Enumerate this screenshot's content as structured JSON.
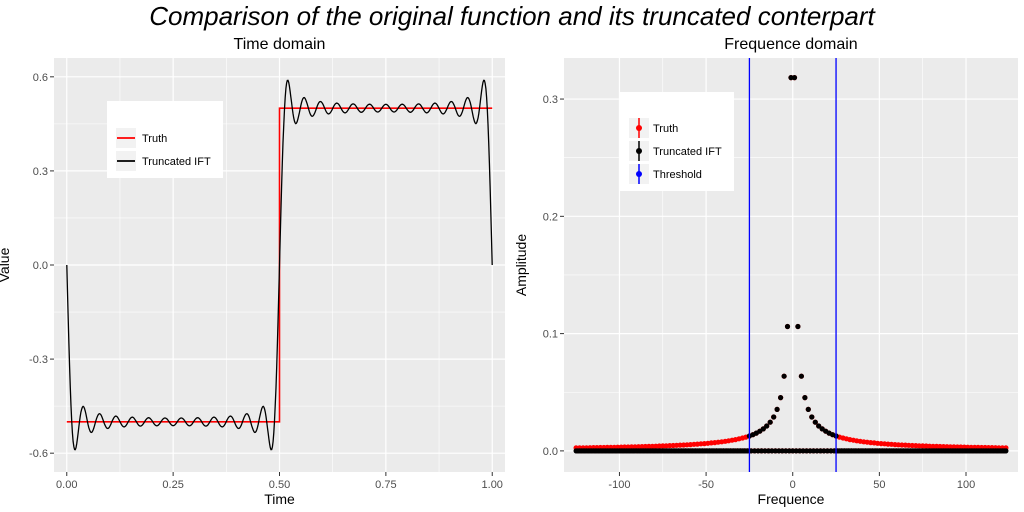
{
  "page": {
    "title": "Comparison of the original function and its truncated conterpart"
  },
  "chart_data": [
    {
      "type": "line",
      "title": "Time domain",
      "xlabel": "Time",
      "ylabel": "Value",
      "xlim": [
        -0.03,
        1.03
      ],
      "ylim": [
        -0.66,
        0.66
      ],
      "x_ticks": [
        0.0,
        0.25,
        0.5,
        0.75,
        1.0
      ],
      "x_tick_labels": [
        "0.00",
        "0.25",
        "0.50",
        "0.75",
        "1.00"
      ],
      "y_ticks": [
        -0.6,
        -0.3,
        0.0,
        0.3,
        0.6
      ],
      "y_tick_labels": [
        "-0.6",
        "-0.3",
        "0.0",
        "0.3",
        "0.6"
      ],
      "grid": true,
      "legend": {
        "position": "top-left",
        "entries": [
          "Truth",
          "Truncated IFT"
        ]
      },
      "series": [
        {
          "name": "Truth",
          "color": "#ff0000",
          "x": [
            0.0,
            0.5,
            0.5,
            1.0
          ],
          "y": [
            -0.5,
            -0.5,
            0.5,
            0.5
          ]
        },
        {
          "name": "Truncated IFT",
          "color": "#000000",
          "function": "truncated Fourier series of square wave, harmonics |k| <= 25",
          "x": [
            0.0,
            0.02,
            0.05,
            0.1,
            0.25,
            0.4,
            0.45,
            0.48,
            0.49,
            0.5,
            0.51,
            0.52,
            0.55,
            0.6,
            0.75,
            0.9,
            0.95,
            0.98,
            0.99,
            1.0
          ],
          "y": [
            -0.05,
            -0.59,
            -0.45,
            -0.5,
            -0.5,
            -0.5,
            -0.46,
            -0.6,
            -0.4,
            0.0,
            0.4,
            0.59,
            0.46,
            0.5,
            0.5,
            0.5,
            0.46,
            0.59,
            0.4,
            0.0
          ]
        }
      ]
    },
    {
      "type": "scatter",
      "title": "Frequence domain",
      "xlabel": "Frequence",
      "ylabel": "Amplitude",
      "xlim": [
        -132,
        130
      ],
      "ylim": [
        -0.018,
        0.335
      ],
      "x_ticks": [
        -100,
        -50,
        0,
        50,
        100
      ],
      "x_tick_labels": [
        "-100",
        "-50",
        "0",
        "50",
        "100"
      ],
      "y_ticks": [
        0.0,
        0.1,
        0.2,
        0.3
      ],
      "y_tick_labels": [
        "0.0",
        "0.1",
        "0.2",
        "0.3"
      ],
      "grid": true,
      "legend": {
        "position": "top-left",
        "entries": [
          "Truth",
          "Truncated IFT",
          "Threshold"
        ]
      },
      "frequency_range": [
        -125,
        123
      ],
      "amplitude_formula": "|k| odd: 1/(pi*|k|); |k| even: 0",
      "threshold": [
        -25,
        25
      ],
      "series": [
        {
          "name": "Truth",
          "color": "#ff0000",
          "description": "amplitude for all frequencies -125..123"
        },
        {
          "name": "Truncated IFT",
          "color": "#000000",
          "description": "amplitude for |k| <= 25, zero elsewhere"
        },
        {
          "name": "Threshold",
          "color": "#0000ff",
          "x": [
            -25,
            25
          ]
        }
      ],
      "sample_points": [
        {
          "x": -1,
          "y": 0.318
        },
        {
          "x": 1,
          "y": 0.318
        },
        {
          "x": -3,
          "y": 0.106
        },
        {
          "x": 3,
          "y": 0.106
        },
        {
          "x": -5,
          "y": 0.064
        },
        {
          "x": 5,
          "y": 0.064
        },
        {
          "x": -7,
          "y": 0.045
        },
        {
          "x": 7,
          "y": 0.045
        },
        {
          "x": -25,
          "y": 0.013
        },
        {
          "x": 25,
          "y": 0.013
        },
        {
          "x": -125,
          "y": 0.003
        },
        {
          "x": 123,
          "y": 0.003
        }
      ]
    }
  ]
}
